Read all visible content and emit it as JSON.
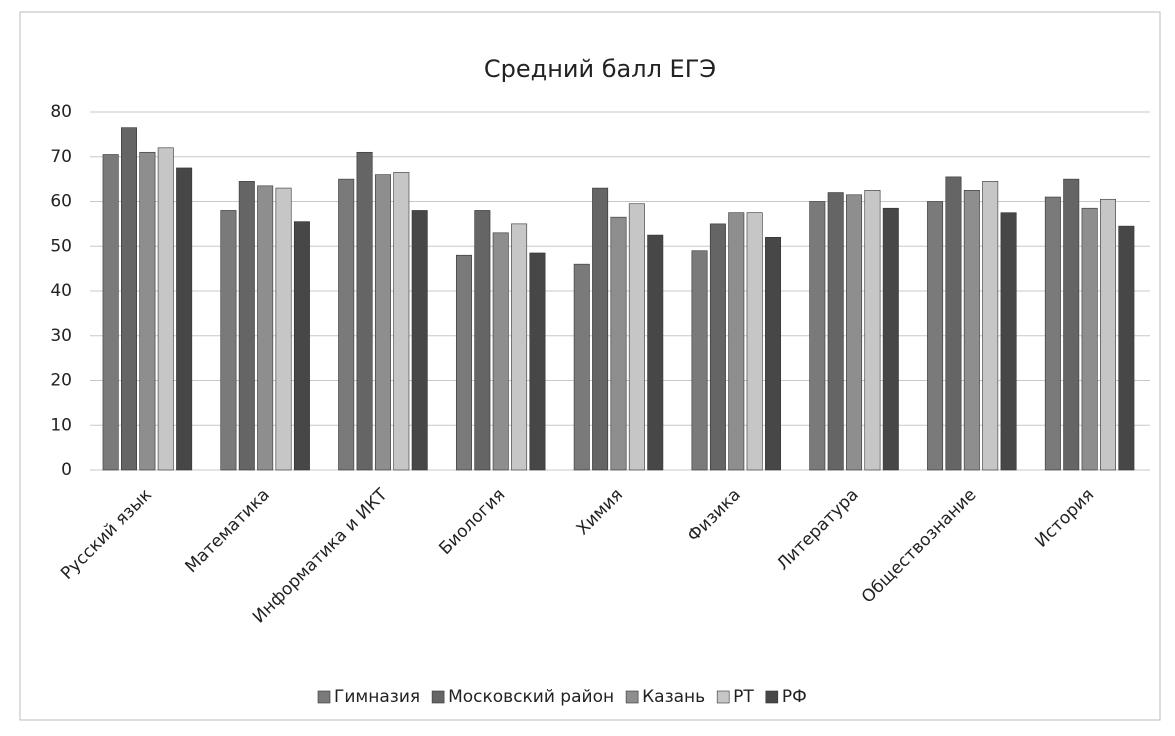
{
  "chart_data": {
    "type": "bar",
    "title": "Средний балл ЕГЭ",
    "categories": [
      "Русский язык",
      "Математика",
      "Информатика и ИКТ",
      "Биология",
      "Химия",
      "Физика",
      "Литература",
      "Обществознание",
      "История"
    ],
    "series": [
      {
        "name": "Гимназия",
        "color": "#7a7a7a",
        "values": [
          70.5,
          58,
          65,
          48,
          46,
          49,
          60,
          60,
          61
        ]
      },
      {
        "name": "Московский район",
        "color": "#656565",
        "values": [
          76.5,
          64.5,
          71,
          58,
          63,
          55,
          62,
          65.5,
          65
        ]
      },
      {
        "name": "Казань",
        "color": "#8e8e8e",
        "values": [
          71,
          63.5,
          66,
          53,
          56.5,
          57.5,
          61.5,
          62.5,
          58.5
        ]
      },
      {
        "name": "РТ",
        "color": "#c6c6c6",
        "values": [
          72,
          63,
          66.5,
          55,
          59.5,
          57.5,
          62.5,
          64.5,
          60.5
        ]
      },
      {
        "name": "РФ",
        "color": "#474747",
        "values": [
          67.5,
          55.5,
          58,
          48.5,
          52.5,
          52,
          58.5,
          57.5,
          54.5
        ]
      }
    ],
    "ylim": [
      0,
      80
    ],
    "yticks": [
      0,
      10,
      20,
      30,
      40,
      50,
      60,
      70,
      80
    ],
    "grid": true,
    "legend": "bottom"
  }
}
